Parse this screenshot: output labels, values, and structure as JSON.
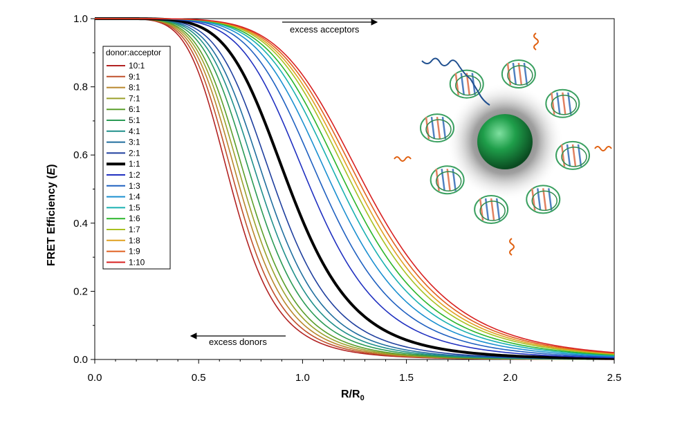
{
  "chart_data": {
    "type": "line",
    "xlabel": "R/R",
    "xlabel_subscript": "0",
    "ylabel": "FRET Efficiency (",
    "ylabel_italic": "E",
    "ylabel_end": ")",
    "xlim": [
      0,
      2.5
    ],
    "ylim": [
      0,
      1.0
    ],
    "x_ticks": [
      "0.0",
      "0.5",
      "1.0",
      "1.5",
      "2.0",
      "2.5"
    ],
    "y_ticks": [
      "0.0",
      "0.2",
      "0.4",
      "0.6",
      "0.8",
      "1.0"
    ],
    "grid": false,
    "legend_title": "donor:acceptor",
    "legend_position": "top-left",
    "annotations": {
      "excess_acceptors": "excess acceptors",
      "excess_donors": "excess donors"
    },
    "series": [
      {
        "name": "10:1",
        "color": "#b22222",
        "half_point": 0.66
      },
      {
        "name": "9:1",
        "color": "#c0502a",
        "half_point": 0.68
      },
      {
        "name": "8:1",
        "color": "#b8862b",
        "half_point": 0.7
      },
      {
        "name": "7:1",
        "color": "#9aa02a",
        "half_point": 0.72
      },
      {
        "name": "6:1",
        "color": "#5a9e2a",
        "half_point": 0.74
      },
      {
        "name": "5:1",
        "color": "#2a9a55",
        "half_point": 0.77
      },
      {
        "name": "4:1",
        "color": "#1f8f8a",
        "half_point": 0.8
      },
      {
        "name": "3:1",
        "color": "#1f6e9e",
        "half_point": 0.83
      },
      {
        "name": "2:1",
        "color": "#1f3f9e",
        "half_point": 0.87
      },
      {
        "name": "1:1",
        "color": "#000000",
        "half_point": 0.94,
        "bold": true
      },
      {
        "name": "1:2",
        "color": "#2030c0",
        "half_point": 1.04
      },
      {
        "name": "1:3",
        "color": "#1f60c0",
        "half_point": 1.1
      },
      {
        "name": "1:4",
        "color": "#1a8fd0",
        "half_point": 1.15
      },
      {
        "name": "1:5",
        "color": "#19b0b0",
        "half_point": 1.19
      },
      {
        "name": "1:6",
        "color": "#2ab52a",
        "half_point": 1.22
      },
      {
        "name": "1:7",
        "color": "#a8c020",
        "half_point": 1.25
      },
      {
        "name": "1:8",
        "color": "#e0a020",
        "half_point": 1.27
      },
      {
        "name": "1:9",
        "color": "#e06020",
        "half_point": 1.29
      },
      {
        "name": "1:10",
        "color": "#d82020",
        "half_point": 1.31
      }
    ]
  }
}
